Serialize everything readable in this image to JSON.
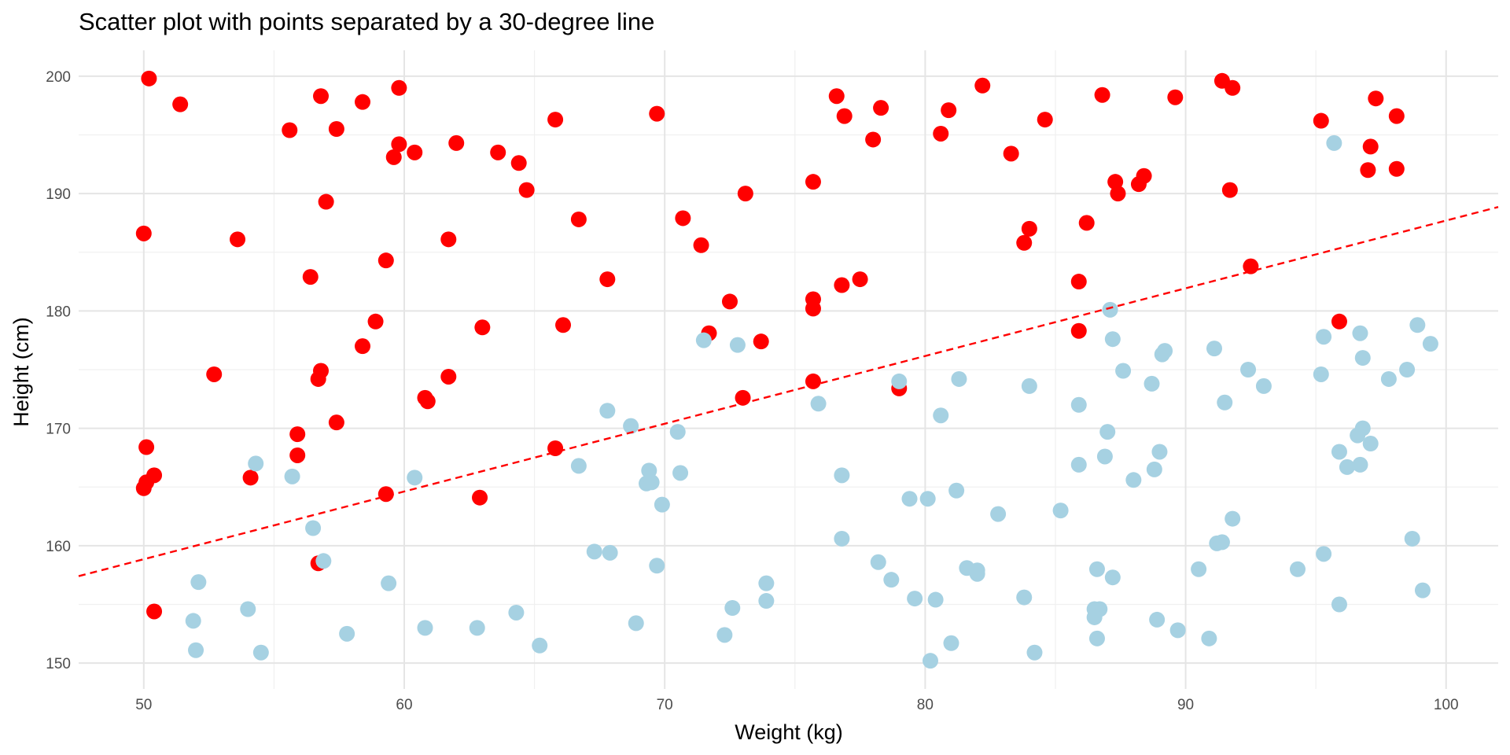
{
  "chart_data": {
    "type": "scatter",
    "title": "Scatter plot with points separated by a 30-degree line",
    "xlabel": "Weight (kg)",
    "ylabel": "Height (cm)",
    "xlim": [
      47.5,
      102
    ],
    "ylim": [
      147.8,
      202.2
    ],
    "x_ticks": [
      50,
      60,
      70,
      80,
      90,
      100
    ],
    "y_ticks": [
      150,
      160,
      170,
      180,
      190,
      200
    ],
    "grid": true,
    "legend": "none",
    "line": {
      "style": "dashed",
      "color": "#ff0000",
      "intercept": 130.0,
      "slope": 0.577
    },
    "series": [
      {
        "color": "#ff0000",
        "points": [
          [
            50.2,
            199.8
          ],
          [
            51.4,
            197.6
          ],
          [
            56.8,
            198.3
          ],
          [
            58.4,
            197.8
          ],
          [
            59.8,
            199.0
          ],
          [
            55.6,
            195.4
          ],
          [
            57.4,
            195.5
          ],
          [
            59.8,
            194.2
          ],
          [
            60.4,
            193.5
          ],
          [
            59.6,
            193.1
          ],
          [
            62.0,
            194.3
          ],
          [
            63.6,
            193.5
          ],
          [
            64.4,
            192.6
          ],
          [
            64.7,
            190.3
          ],
          [
            65.8,
            196.3
          ],
          [
            69.7,
            196.8
          ],
          [
            57.0,
            189.3
          ],
          [
            50.0,
            186.6
          ],
          [
            53.6,
            186.1
          ],
          [
            61.7,
            186.1
          ],
          [
            66.7,
            187.8
          ],
          [
            70.7,
            187.9
          ],
          [
            71.4,
            185.6
          ],
          [
            59.3,
            184.3
          ],
          [
            56.4,
            182.9
          ],
          [
            67.8,
            182.7
          ],
          [
            73.1,
            190.0
          ],
          [
            75.7,
            191.0
          ],
          [
            76.6,
            198.3
          ],
          [
            76.9,
            196.6
          ],
          [
            78.3,
            197.3
          ],
          [
            78.0,
            194.6
          ],
          [
            80.6,
            195.1
          ],
          [
            80.9,
            197.1
          ],
          [
            82.2,
            199.2
          ],
          [
            83.3,
            193.4
          ],
          [
            84.6,
            196.3
          ],
          [
            86.8,
            198.4
          ],
          [
            89.6,
            198.2
          ],
          [
            91.4,
            199.6
          ],
          [
            91.8,
            199.0
          ],
          [
            95.2,
            196.2
          ],
          [
            97.3,
            198.1
          ],
          [
            98.1,
            196.6
          ],
          [
            97.1,
            194.0
          ],
          [
            97.0,
            192.0
          ],
          [
            98.1,
            192.1
          ],
          [
            91.7,
            190.3
          ],
          [
            87.3,
            191.0
          ],
          [
            87.4,
            190.0
          ],
          [
            88.2,
            190.8
          ],
          [
            88.4,
            191.5
          ],
          [
            84.0,
            187.0
          ],
          [
            83.8,
            185.8
          ],
          [
            86.2,
            187.5
          ],
          [
            85.9,
            182.5
          ],
          [
            92.5,
            183.8
          ],
          [
            75.7,
            181.0
          ],
          [
            75.7,
            180.2
          ],
          [
            76.8,
            182.2
          ],
          [
            77.5,
            182.7
          ],
          [
            72.5,
            180.8
          ],
          [
            58.9,
            179.1
          ],
          [
            63.0,
            178.6
          ],
          [
            66.1,
            178.8
          ],
          [
            71.7,
            178.1
          ],
          [
            73.7,
            177.4
          ],
          [
            58.4,
            177.0
          ],
          [
            56.8,
            174.9
          ],
          [
            56.7,
            174.2
          ],
          [
            52.7,
            174.6
          ],
          [
            61.7,
            174.4
          ],
          [
            60.8,
            172.6
          ],
          [
            60.9,
            172.3
          ],
          [
            57.4,
            170.5
          ],
          [
            55.9,
            169.5
          ],
          [
            50.1,
            168.4
          ],
          [
            55.9,
            167.7
          ],
          [
            50.1,
            165.4
          ],
          [
            50.0,
            164.9
          ],
          [
            50.4,
            166.0
          ],
          [
            54.1,
            165.8
          ],
          [
            59.3,
            164.4
          ],
          [
            62.9,
            164.1
          ],
          [
            65.8,
            168.3
          ],
          [
            75.7,
            174.0
          ],
          [
            73.0,
            172.6
          ],
          [
            79.0,
            173.4
          ],
          [
            85.9,
            178.3
          ],
          [
            95.9,
            179.1
          ],
          [
            56.7,
            158.5
          ],
          [
            50.4,
            154.4
          ]
        ]
      },
      {
        "color": "#a6d1e2",
        "points": [
          [
            95.7,
            194.3
          ],
          [
            87.1,
            180.1
          ],
          [
            87.2,
            177.6
          ],
          [
            89.2,
            176.6
          ],
          [
            89.1,
            176.3
          ],
          [
            91.1,
            176.8
          ],
          [
            95.3,
            177.8
          ],
          [
            96.7,
            178.1
          ],
          [
            98.9,
            178.8
          ],
          [
            99.4,
            177.2
          ],
          [
            71.5,
            177.5
          ],
          [
            72.8,
            177.1
          ],
          [
            96.8,
            176.0
          ],
          [
            87.6,
            174.9
          ],
          [
            92.4,
            175.0
          ],
          [
            95.2,
            174.6
          ],
          [
            98.5,
            175.0
          ],
          [
            97.8,
            174.2
          ],
          [
            81.3,
            174.2
          ],
          [
            84.0,
            173.6
          ],
          [
            88.7,
            173.8
          ],
          [
            93.0,
            173.6
          ],
          [
            79.0,
            174.0
          ],
          [
            75.9,
            172.1
          ],
          [
            85.9,
            172.0
          ],
          [
            91.5,
            172.2
          ],
          [
            67.8,
            171.5
          ],
          [
            80.6,
            171.1
          ],
          [
            68.7,
            170.2
          ],
          [
            70.5,
            169.7
          ],
          [
            87.0,
            169.7
          ],
          [
            96.6,
            169.4
          ],
          [
            96.8,
            170.0
          ],
          [
            97.1,
            168.7
          ],
          [
            86.9,
            167.6
          ],
          [
            89.0,
            168.0
          ],
          [
            95.9,
            168.0
          ],
          [
            96.2,
            166.7
          ],
          [
            96.7,
            166.9
          ],
          [
            54.3,
            167.0
          ],
          [
            66.7,
            166.8
          ],
          [
            69.4,
            166.4
          ],
          [
            69.3,
            165.3
          ],
          [
            69.5,
            165.4
          ],
          [
            70.6,
            166.2
          ],
          [
            76.8,
            166.0
          ],
          [
            85.9,
            166.9
          ],
          [
            88.0,
            165.6
          ],
          [
            88.8,
            166.5
          ],
          [
            55.7,
            165.9
          ],
          [
            60.4,
            165.8
          ],
          [
            69.9,
            163.5
          ],
          [
            79.4,
            164.0
          ],
          [
            80.1,
            164.0
          ],
          [
            81.2,
            164.7
          ],
          [
            82.8,
            162.7
          ],
          [
            85.2,
            163.0
          ],
          [
            91.8,
            162.3
          ],
          [
            56.5,
            161.5
          ],
          [
            91.2,
            160.2
          ],
          [
            91.4,
            160.3
          ],
          [
            98.7,
            160.6
          ],
          [
            76.8,
            160.6
          ],
          [
            67.3,
            159.5
          ],
          [
            67.9,
            159.4
          ],
          [
            95.3,
            159.3
          ],
          [
            56.9,
            158.7
          ],
          [
            69.7,
            158.3
          ],
          [
            78.2,
            158.6
          ],
          [
            81.6,
            158.1
          ],
          [
            82.0,
            157.6
          ],
          [
            82.0,
            157.9
          ],
          [
            86.6,
            158.0
          ],
          [
            87.2,
            157.3
          ],
          [
            90.5,
            158.0
          ],
          [
            94.3,
            158.0
          ],
          [
            52.1,
            156.9
          ],
          [
            59.4,
            156.8
          ],
          [
            73.9,
            156.8
          ],
          [
            78.7,
            157.1
          ],
          [
            99.1,
            156.2
          ],
          [
            73.9,
            155.3
          ],
          [
            79.6,
            155.5
          ],
          [
            80.4,
            155.4
          ],
          [
            83.8,
            155.6
          ],
          [
            95.9,
            155.0
          ],
          [
            54.0,
            154.6
          ],
          [
            64.3,
            154.3
          ],
          [
            72.6,
            154.7
          ],
          [
            86.5,
            154.6
          ],
          [
            86.7,
            154.6
          ],
          [
            86.5,
            153.9
          ],
          [
            51.9,
            153.6
          ],
          [
            60.8,
            153.0
          ],
          [
            62.8,
            153.0
          ],
          [
            68.9,
            153.4
          ],
          [
            88.9,
            153.7
          ],
          [
            89.7,
            152.8
          ],
          [
            57.8,
            152.5
          ],
          [
            72.3,
            152.4
          ],
          [
            86.6,
            152.1
          ],
          [
            90.9,
            152.1
          ],
          [
            65.2,
            151.5
          ],
          [
            81.0,
            151.7
          ],
          [
            52.0,
            151.1
          ],
          [
            54.5,
            150.9
          ],
          [
            84.2,
            150.9
          ],
          [
            80.2,
            150.2
          ]
        ]
      }
    ]
  }
}
